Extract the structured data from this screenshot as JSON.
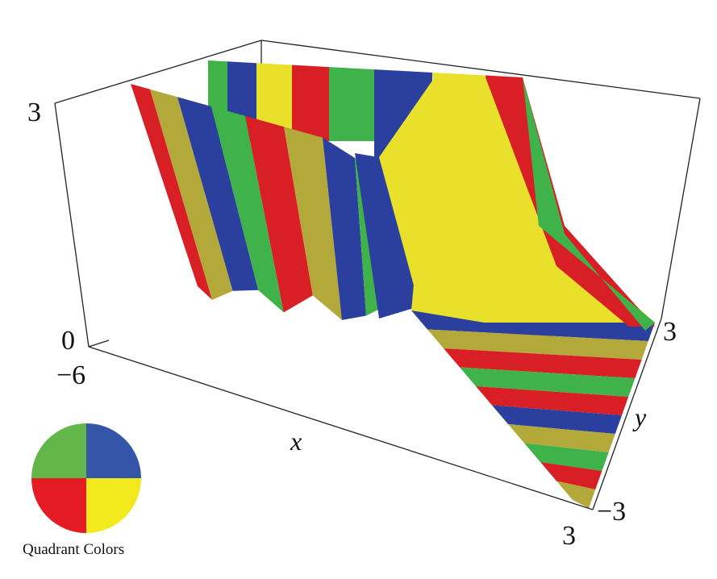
{
  "figure": {
    "axes": {
      "z_max_label": "3",
      "z_min_label": "0",
      "x_min_label": "−6",
      "x_max_label": "3",
      "x_axis_label": "x",
      "y_max_label": "3",
      "y_min_label": "−3",
      "y_axis_label": "y"
    },
    "legend": {
      "caption": "Quadrant Colors",
      "quadrants": {
        "top_left": "#63b64a",
        "top_right": "#3555a8",
        "bottom_left": "#e51c23",
        "bottom_right": "#f2ea1c"
      }
    },
    "surface_colors": {
      "red": "#d91f26",
      "yellow": "#e8e02a",
      "blue": "#2a3f9e",
      "green": "#3fb24a",
      "olive": "#b3a83a"
    }
  }
}
